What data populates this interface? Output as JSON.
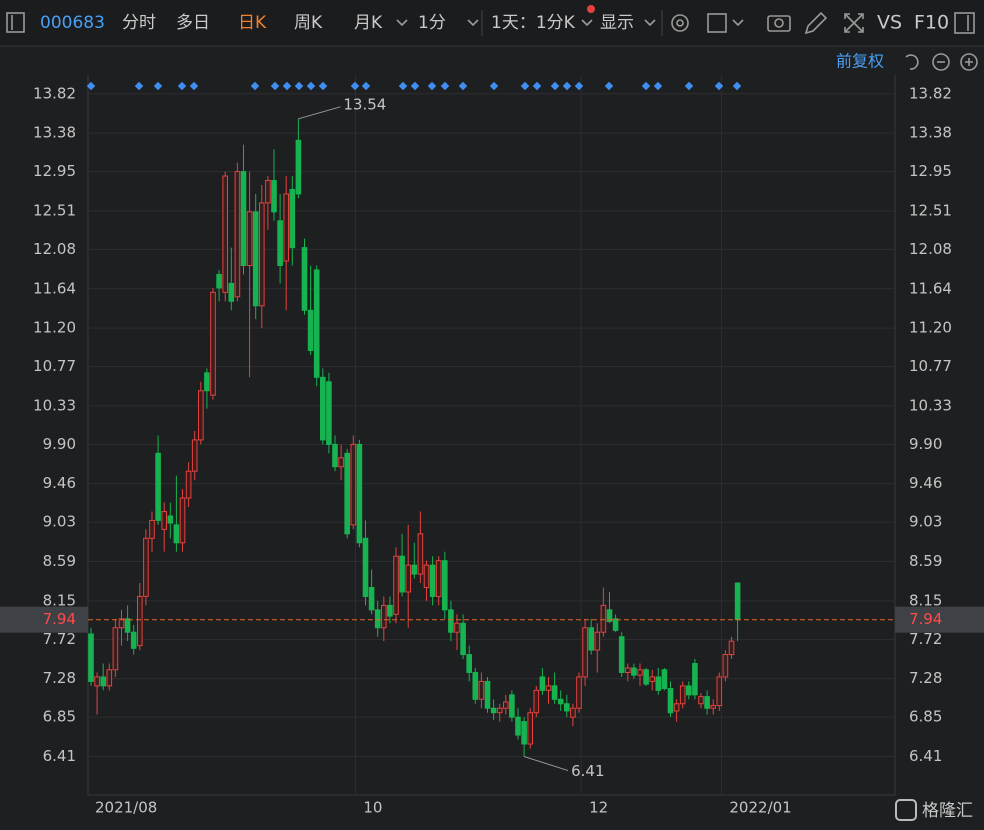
{
  "toolbar": {
    "code": "000683",
    "tabs": [
      "分时",
      "多日",
      "日K",
      "周K",
      "月K",
      "1分",
      "1天：1分K",
      "显示"
    ],
    "right": [
      "VS",
      "F10"
    ]
  },
  "adjust": "前复权",
  "watermark": "格隆汇",
  "chart_data": {
    "type": "candlestick",
    "categories": [
      "2021/08",
      null,
      null,
      null,
      null,
      null,
      null,
      null,
      null,
      null,
      null,
      null,
      null,
      null,
      null,
      null,
      null,
      null,
      null,
      null,
      null,
      null,
      null,
      null,
      null,
      null,
      null,
      null,
      null,
      null,
      null,
      null,
      null,
      null,
      null,
      null,
      null,
      null,
      null,
      null,
      null,
      null,
      null,
      null,
      "10",
      null,
      null,
      null,
      null,
      null,
      null,
      null,
      null,
      null,
      null,
      null,
      null,
      null,
      null,
      null,
      null,
      null,
      null,
      null,
      null,
      null,
      null,
      null,
      null,
      null,
      null,
      null,
      null,
      null,
      null,
      null,
      null,
      null,
      null,
      null,
      null,
      "12",
      null,
      null,
      null,
      null,
      null,
      null,
      null,
      null,
      null,
      null,
      null,
      null,
      null,
      null,
      null,
      null,
      null,
      null,
      null,
      null,
      null,
      null,
      "2022/01",
      null,
      null
    ],
    "open": [
      7.78,
      7.2,
      7.3,
      7.2,
      7.38,
      7.85,
      7.95,
      7.8,
      7.65,
      8.2,
      8.85,
      9.8,
      8.95,
      9.1,
      9.0,
      8.8,
      9.3,
      9.6,
      9.95,
      10.7,
      10.45,
      11.8,
      11.6,
      11.7,
      11.55,
      12.95,
      11.9,
      12.5,
      11.45,
      12.6,
      12.85,
      12.4,
      11.95,
      12.75,
      13.3,
      12.1,
      11.4,
      11.85,
      10.65,
      10.6,
      9.9,
      9.65,
      9.8,
      9.0,
      9.9,
      8.85,
      8.3,
      8.05,
      7.85,
      8.1,
      8.0,
      8.65,
      8.25,
      8.55,
      8.45,
      8.3,
      8.55,
      8.2,
      8.6,
      8.05,
      7.8,
      7.9,
      7.55,
      7.35,
      7.05,
      7.25,
      6.95,
      6.9,
      6.95,
      7.1,
      6.85,
      6.8,
      6.55,
      6.9,
      7.3,
      7.15,
      7.2,
      7.05,
      7.0,
      6.85,
      6.95,
      7.3,
      7.85,
      7.6,
      7.8,
      8.05,
      7.95,
      7.75,
      7.35,
      7.4,
      7.32,
      7.38,
      7.25,
      7.3,
      7.38,
      7.17,
      6.92,
      7.0,
      7.2,
      7.45,
      7.0,
      7.08,
      6.95,
      6.98,
      7.3,
      7.55,
      8.35
    ],
    "high": [
      7.85,
      7.35,
      7.45,
      7.45,
      7.95,
      8.05,
      8.1,
      7.88,
      8.35,
      8.95,
      9.15,
      10.0,
      9.25,
      9.25,
      9.55,
      9.4,
      9.7,
      10.05,
      10.6,
      10.75,
      11.65,
      11.85,
      12.95,
      12.1,
      13.05,
      13.25,
      12.95,
      12.7,
      12.8,
      12.9,
      13.2,
      12.7,
      12.9,
      12.9,
      13.54,
      12.2,
      11.9,
      11.9,
      10.75,
      10.7,
      10.0,
      9.9,
      9.85,
      10.0,
      9.95,
      9.05,
      8.5,
      8.15,
      8.2,
      8.2,
      8.75,
      8.9,
      9.0,
      8.8,
      9.15,
      8.6,
      8.65,
      8.65,
      8.7,
      8.15,
      8.0,
      8.0,
      7.65,
      7.4,
      7.35,
      7.3,
      7.05,
      7.0,
      7.1,
      7.15,
      6.95,
      6.85,
      6.95,
      7.2,
      7.4,
      7.3,
      7.35,
      7.15,
      7.1,
      7.0,
      7.35,
      7.95,
      7.95,
      7.9,
      8.3,
      8.25,
      8.0,
      7.8,
      7.45,
      7.45,
      7.45,
      7.4,
      7.38,
      7.4,
      7.4,
      7.25,
      7.05,
      7.25,
      7.25,
      7.5,
      7.12,
      7.15,
      7.05,
      7.35,
      7.6,
      7.75,
      8.35
    ],
    "low": [
      7.2,
      6.88,
      7.15,
      7.15,
      7.3,
      7.65,
      7.7,
      7.55,
      7.6,
      8.1,
      8.7,
      9.0,
      8.7,
      8.85,
      8.7,
      8.7,
      9.2,
      9.5,
      9.9,
      10.3,
      10.4,
      11.5,
      11.5,
      11.4,
      11.5,
      11.8,
      10.65,
      11.3,
      11.2,
      12.3,
      12.4,
      11.7,
      11.4,
      11.9,
      12.65,
      11.35,
      10.9,
      10.55,
      9.9,
      9.8,
      9.6,
      9.5,
      8.85,
      8.95,
      8.75,
      8.1,
      8.0,
      7.75,
      7.7,
      7.9,
      7.9,
      8.2,
      7.85,
      8.4,
      8.35,
      8.15,
      8.1,
      8.1,
      7.95,
      7.7,
      7.6,
      7.5,
      7.25,
      7.0,
      6.95,
      6.9,
      6.82,
      6.8,
      6.88,
      6.8,
      6.6,
      6.41,
      6.5,
      6.85,
      7.1,
      7.0,
      7.0,
      6.92,
      6.85,
      6.75,
      6.9,
      7.2,
      7.55,
      7.35,
      7.75,
      7.9,
      7.8,
      7.3,
      7.25,
      7.28,
      7.2,
      7.2,
      7.15,
      7.1,
      7.15,
      6.85,
      6.8,
      6.95,
      7.05,
      7.05,
      6.95,
      6.88,
      6.88,
      6.92,
      7.25,
      7.5,
      7.7
    ],
    "close": [
      7.25,
      7.3,
      7.2,
      7.38,
      7.85,
      7.95,
      7.8,
      7.62,
      8.2,
      8.85,
      9.05,
      9.05,
      9.15,
      9.02,
      8.8,
      9.3,
      9.6,
      9.95,
      10.5,
      10.5,
      11.6,
      11.65,
      12.9,
      11.5,
      12.95,
      11.9,
      12.5,
      11.45,
      12.6,
      12.85,
      12.5,
      11.9,
      12.7,
      12.1,
      12.7,
      11.4,
      10.95,
      10.65,
      9.95,
      9.9,
      9.65,
      9.75,
      8.9,
      9.9,
      8.8,
      8.2,
      8.05,
      7.85,
      8.1,
      7.98,
      8.65,
      8.25,
      8.55,
      8.45,
      8.9,
      8.55,
      8.2,
      8.6,
      8.05,
      7.8,
      7.9,
      7.55,
      7.35,
      7.05,
      7.25,
      6.95,
      6.9,
      6.95,
      7.02,
      6.85,
      6.65,
      6.55,
      6.9,
      7.15,
      7.15,
      7.2,
      7.05,
      7.0,
      6.92,
      6.95,
      7.3,
      7.85,
      7.6,
      7.8,
      8.1,
      7.92,
      7.82,
      7.35,
      7.4,
      7.32,
      7.38,
      7.22,
      7.3,
      7.15,
      7.17,
      6.9,
      7.0,
      7.2,
      7.1,
      7.1,
      7.08,
      6.95,
      6.98,
      7.3,
      7.55,
      7.7,
      7.94
    ],
    "up_color": "#e5423e",
    "down_color": "#17b350",
    "ylim": [
      5.98,
      14.03
    ],
    "yticks": [
      13.82,
      13.38,
      12.95,
      12.51,
      12.08,
      11.64,
      {
        "value": 11.2,
        "label": "11.20"
      },
      10.77,
      10.33,
      {
        "value": 9.9,
        "label": "9.90"
      },
      9.46,
      9.03,
      8.59,
      8.15,
      7.72,
      7.28,
      6.85,
      6.41
    ],
    "last_price": 7.94,
    "high_label": 13.54,
    "low_label": 6.41,
    "grid": true
  }
}
